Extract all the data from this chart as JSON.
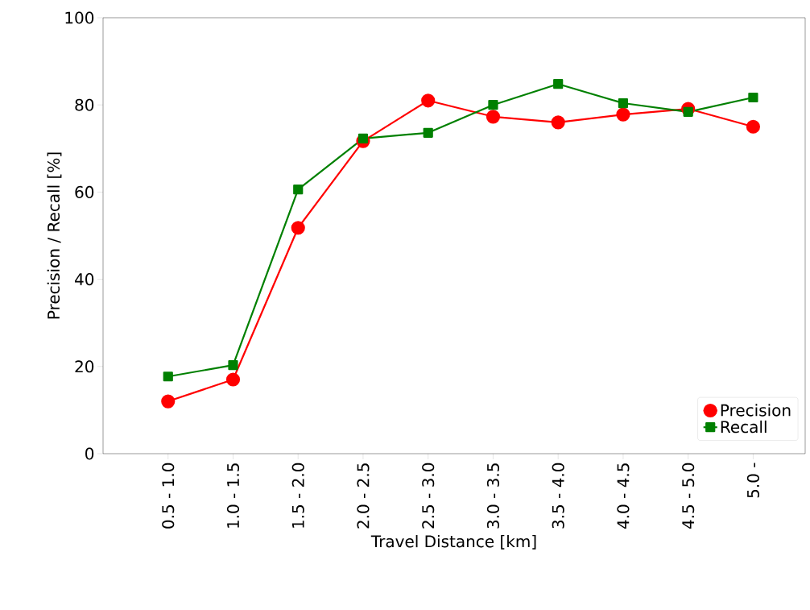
{
  "chart_data": {
    "type": "line",
    "xlabel": "Travel Distance [km]",
    "ylabel": "Precision / Recall [%]",
    "categories": [
      "0.5 - 1.0",
      "1.0 - 1.5",
      "1.5 - 2.0",
      "2.0 - 2.5",
      "2.5 - 3.0",
      "3.0 - 3.5",
      "3.5 - 4.0",
      "4.0 - 4.5",
      "4.5 - 5.0",
      "5.0 -"
    ],
    "series": [
      {
        "name": "Precision",
        "color": "#ff0000",
        "marker": "circle",
        "values": [
          12.0,
          17.0,
          51.8,
          71.7,
          81.0,
          77.3,
          76.0,
          77.8,
          79.1,
          75.0
        ]
      },
      {
        "name": "Recall",
        "color": "#008000",
        "marker": "square",
        "values": [
          17.7,
          20.3,
          60.6,
          72.3,
          73.6,
          80.0,
          84.8,
          80.4,
          78.4,
          81.7
        ]
      }
    ],
    "ylim": [
      0,
      100
    ],
    "yticks": [
      0,
      20,
      40,
      60,
      80,
      100
    ],
    "legend": "bottom right"
  }
}
